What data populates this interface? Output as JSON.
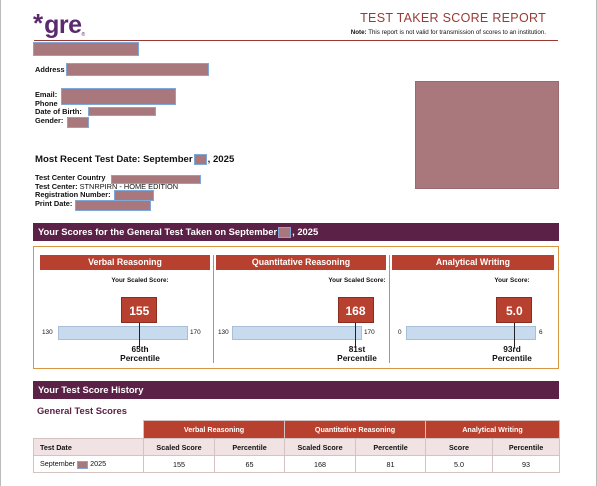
{
  "header": {
    "logo_text": "gre",
    "logo_asterisk": "*",
    "logo_reg": "®",
    "report_title": "TEST TAKER SCORE REPORT",
    "note_label": "Note:",
    "note_text": " This report is not valid for transmission of scores to an institution."
  },
  "candidate": {
    "address_label": "Address",
    "email_label": "Email:",
    "phone_label": "Phone",
    "dob_label": "Date of Birth:",
    "gender_label": "Gender:"
  },
  "recent_test": {
    "label_pre": "Most Recent Test Date: September",
    "label_post": ", 2025"
  },
  "test_center": {
    "country_label": "Test Center Country",
    "center_label": "Test Center:",
    "center_value": "STNRPIRN - HOME EDITION",
    "registration_label": "Registration Number:",
    "print_date_label": "Print Date:"
  },
  "scores_bar": {
    "label_pre": "Your Scores for the General Test Taken on September",
    "label_post": ", 2025"
  },
  "sections": [
    {
      "name": "Verbal Reasoning",
      "scaled_label": "Your Scaled Score:",
      "score": "155",
      "min": "130",
      "max": "170",
      "percentile_num": "65th",
      "percentile_word": "Percentile",
      "score_value": 155,
      "scale_min": 130,
      "scale_max": 170
    },
    {
      "name": "Quantitative Reasoning",
      "scaled_label": "Your Scaled Score:",
      "score": "168",
      "min": "130",
      "max": "170",
      "percentile_num": "81st",
      "percentile_word": "Percentile",
      "score_value": 168,
      "scale_min": 130,
      "scale_max": 170
    },
    {
      "name": "Analytical Writing",
      "scaled_label": "Your Score:",
      "score": "5.0",
      "min": "0",
      "max": "6",
      "percentile_num": "93rd",
      "percentile_word": "Percentile",
      "score_value": 5.0,
      "scale_min": 0,
      "scale_max": 6
    }
  ],
  "history": {
    "bar_title": "Your Test Score History",
    "subtitle": "General Test Scores",
    "group_headers": [
      "Verbal Reasoning",
      "Quantitative Reasoning",
      "Analytical Writing"
    ],
    "sub_headers": [
      "Test Date",
      "Scaled Score",
      "Percentile",
      "Scaled Score",
      "Percentile",
      "Score",
      "Percentile"
    ],
    "row": {
      "date_pre": "September",
      "date_post": "2025",
      "cells": [
        "155",
        "65",
        "168",
        "81",
        "5.0",
        "93"
      ]
    }
  },
  "colors": {
    "brand_purple": "#5b2a6e",
    "bar_plum": "#5b2147",
    "section_red": "#b8402e",
    "border_orange": "#d99642",
    "scale_blue": "#c8daee",
    "redaction": "#a9787c"
  }
}
